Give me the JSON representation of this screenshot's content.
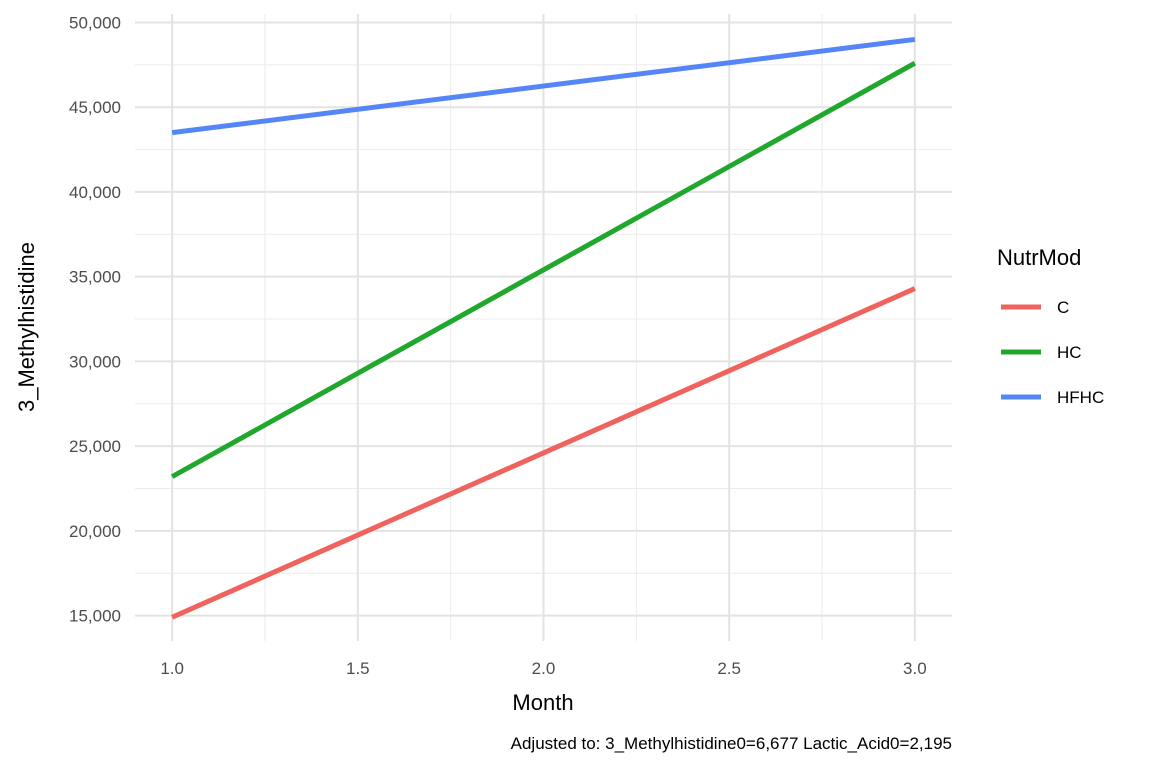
{
  "chart_data": {
    "type": "line",
    "xlabel": "Month",
    "ylabel": "3_Methylhistidine",
    "xlim": [
      0.9,
      3.1
    ],
    "ylim": [
      13500,
      50500
    ],
    "x_ticks": [
      "1.0",
      "1.5",
      "2.0",
      "2.5",
      "3.0"
    ],
    "y_ticks": [
      "15,000",
      "20,000",
      "25,000",
      "30,000",
      "35,000",
      "40,000",
      "45,000",
      "50,000"
    ],
    "grid": true,
    "legend": {
      "title": "NutrMod",
      "position": "right"
    },
    "caption": "Adjusted to: 3_Methylhistidine0=6,677 Lactic_Acid0=2,195",
    "series": [
      {
        "name": "C",
        "color": "#f0625d",
        "x": [
          1.0,
          3.0
        ],
        "y": [
          14900,
          34300
        ]
      },
      {
        "name": "HC",
        "color": "#1fa82c",
        "x": [
          1.0,
          3.0
        ],
        "y": [
          23200,
          47600
        ]
      },
      {
        "name": "HFHC",
        "color": "#5586f6",
        "x": [
          1.0,
          3.0
        ],
        "y": [
          43500,
          49000
        ]
      }
    ]
  }
}
